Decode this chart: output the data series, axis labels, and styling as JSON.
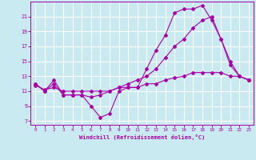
{
  "xlabel": "Windchill (Refroidissement éolien,°C)",
  "background_color": "#c8eaf0",
  "grid_color": "#ffffff",
  "line_color": "#aa00aa",
  "x_ticks": [
    0,
    1,
    2,
    3,
    4,
    5,
    6,
    7,
    8,
    9,
    10,
    11,
    12,
    13,
    14,
    15,
    16,
    17,
    18,
    19,
    20,
    21,
    22,
    23
  ],
  "y_ticks": [
    7,
    9,
    11,
    13,
    15,
    17,
    19,
    21
  ],
  "xlim": [
    -0.5,
    23.5
  ],
  "ylim": [
    6.5,
    23.0
  ],
  "line1_x": [
    0,
    1,
    2,
    3,
    4,
    5,
    6,
    7,
    8,
    9,
    10,
    11,
    12,
    13,
    14,
    15,
    16,
    17,
    18,
    19,
    20,
    21,
    22,
    23
  ],
  "line1_y": [
    12.0,
    11.0,
    12.5,
    10.5,
    10.5,
    10.5,
    9.0,
    7.5,
    8.0,
    11.0,
    11.5,
    11.5,
    14.0,
    16.5,
    18.5,
    21.5,
    22.0,
    22.0,
    22.5,
    20.5,
    18.0,
    14.5,
    13.0,
    12.5
  ],
  "line2_x": [
    0,
    1,
    2,
    3,
    4,
    5,
    6,
    7,
    8,
    9,
    10,
    11,
    12,
    13,
    14,
    15,
    16,
    17,
    18,
    19,
    20,
    21,
    22,
    23
  ],
  "line2_y": [
    12.0,
    11.0,
    12.0,
    10.5,
    10.5,
    10.5,
    10.2,
    10.5,
    11.0,
    11.5,
    12.0,
    12.5,
    13.0,
    14.0,
    15.5,
    17.0,
    18.0,
    19.5,
    20.5,
    21.0,
    18.0,
    15.0,
    13.0,
    12.5
  ],
  "line3_x": [
    0,
    1,
    2,
    3,
    4,
    5,
    6,
    7,
    8,
    9,
    10,
    11,
    12,
    13,
    14,
    15,
    16,
    17,
    18,
    19,
    20,
    21,
    22,
    23
  ],
  "line3_y": [
    11.8,
    11.2,
    11.5,
    11.0,
    11.0,
    11.0,
    11.0,
    11.0,
    11.0,
    11.5,
    11.5,
    11.5,
    12.0,
    12.0,
    12.5,
    12.8,
    13.0,
    13.5,
    13.5,
    13.5,
    13.5,
    13.0,
    13.0,
    12.5
  ]
}
